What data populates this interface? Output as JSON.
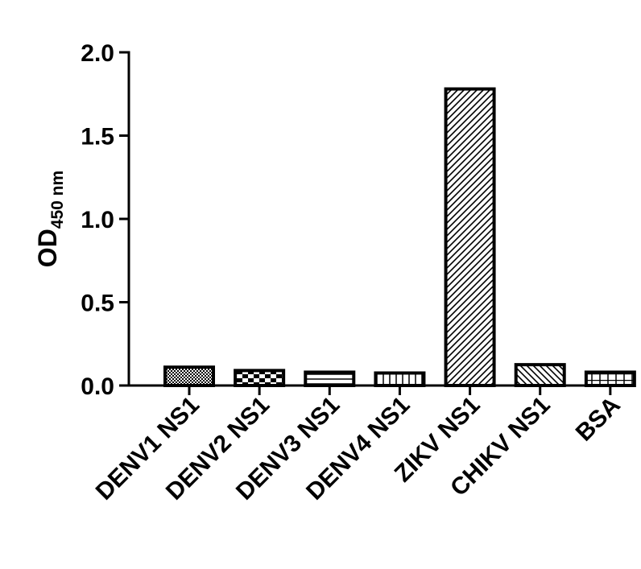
{
  "chart_data": {
    "type": "bar",
    "title": "",
    "xlabel": "",
    "ylabel": "OD",
    "ylabel_subscript": "450 nm",
    "categories": [
      "DENV1 NS1",
      "DENV2 NS1",
      "DENV3 NS1",
      "DENV4 NS1",
      "ZIKV NS1",
      "CHIKV NS1",
      "BSA"
    ],
    "values": [
      0.11,
      0.09,
      0.08,
      0.075,
      1.78,
      0.125,
      0.08
    ],
    "patterns": [
      "checker-fine",
      "checker-coarse",
      "horizontal-lines",
      "grid-vertical",
      "diagonal-right",
      "diagonal-left",
      "grid-boxes"
    ],
    "ylim": [
      0,
      2.0
    ],
    "yticks": [
      "0.0",
      "0.5",
      "1.0",
      "1.5",
      "2.0"
    ],
    "grid": false,
    "legend": "none",
    "bar_color": "#ffffff",
    "edge_color": "#000000"
  }
}
